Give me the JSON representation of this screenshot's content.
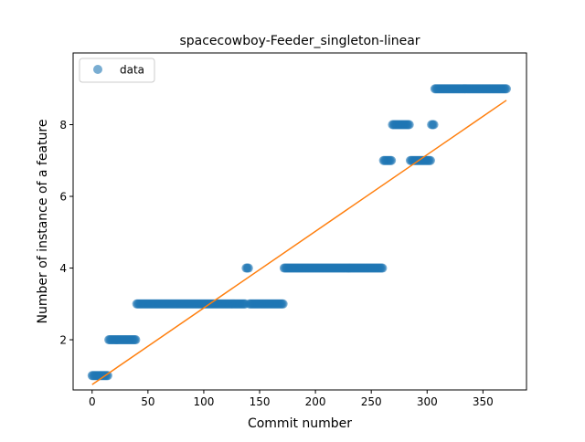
{
  "chart_data": {
    "type": "scatter",
    "title": "spacecowboy-Feeder_singleton-linear",
    "xlabel": "Commit number",
    "ylabel": "Number of instance of a feature",
    "xlim": [
      -17,
      389
    ],
    "ylim": [
      0.6,
      10.0
    ],
    "xticks": [
      0,
      50,
      100,
      150,
      200,
      250,
      300,
      350
    ],
    "yticks": [
      2,
      4,
      6,
      8
    ],
    "legend": {
      "position": "top-left",
      "entries": [
        "data"
      ]
    },
    "grid": false,
    "colors": {
      "data": "#1f77b4",
      "fit": "#ff7f0e"
    },
    "segments": [
      {
        "x_start": 0,
        "x_end": 14,
        "y": 1
      },
      {
        "x_start": 15,
        "x_end": 39,
        "y": 2
      },
      {
        "x_start": 40,
        "x_end": 137,
        "y": 3
      },
      {
        "x_start": 138,
        "x_end": 140,
        "y": 4
      },
      {
        "x_start": 141,
        "x_end": 171,
        "y": 3
      },
      {
        "x_start": 172,
        "x_end": 260,
        "y": 4
      },
      {
        "x_start": 261,
        "x_end": 268,
        "y": 7
      },
      {
        "x_start": 269,
        "x_end": 284,
        "y": 8
      },
      {
        "x_start": 285,
        "x_end": 303,
        "y": 7
      },
      {
        "x_start": 304,
        "x_end": 306,
        "y": 8
      },
      {
        "x_start": 307,
        "x_end": 371,
        "y": 9
      }
    ],
    "series": [
      {
        "name": "data",
        "style": "points"
      },
      {
        "style": "line",
        "x": [
          0,
          371
        ],
        "y": [
          0.75,
          8.68
        ]
      }
    ]
  }
}
